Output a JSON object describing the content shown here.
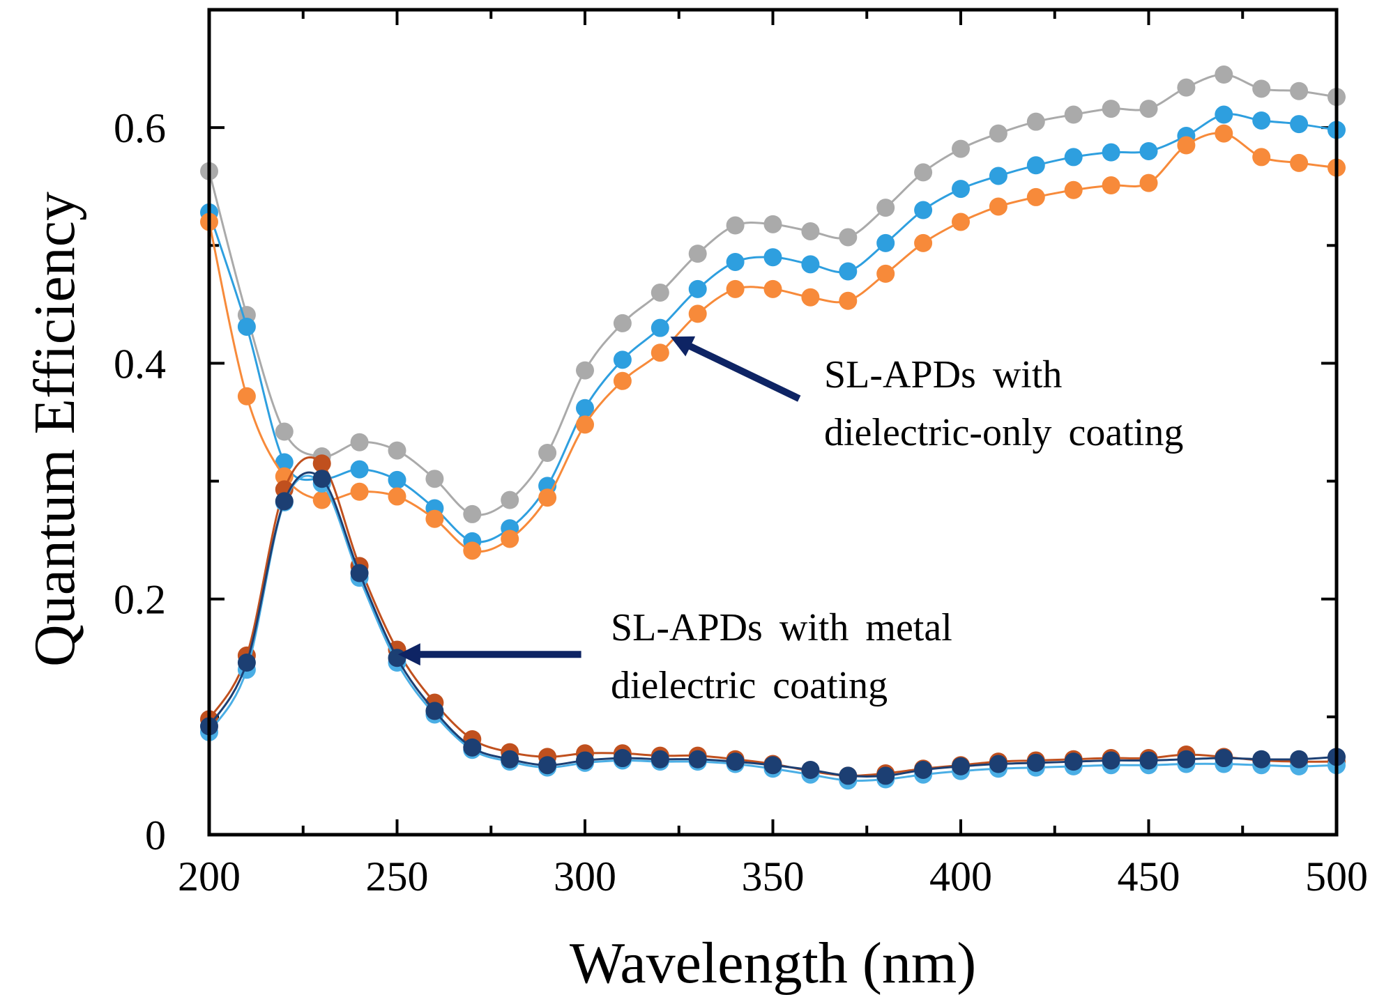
{
  "chart_data": {
    "type": "line",
    "title": "",
    "xlabel": "Wavelength (nm)",
    "ylabel": "Quantum Efficiency",
    "xlim": [
      200,
      500
    ],
    "ylim": [
      0,
      0.7
    ],
    "x_ticks": [
      200,
      250,
      300,
      350,
      400,
      450,
      500
    ],
    "x_tick_labels": [
      "200",
      "250",
      "300",
      "350",
      "400",
      "450",
      "500"
    ],
    "y_ticks": [
      0,
      0.2,
      0.4,
      0.6
    ],
    "y_tick_labels": [
      "0",
      "0.2",
      "0.4",
      "0.6"
    ],
    "y_minor_ticks": [
      0.1,
      0.3,
      0.5
    ],
    "grid": false,
    "x": [
      200,
      210,
      220,
      230,
      240,
      250,
      260,
      270,
      280,
      290,
      300,
      310,
      320,
      330,
      340,
      350,
      360,
      370,
      380,
      390,
      400,
      410,
      420,
      430,
      440,
      450,
      460,
      470,
      480,
      490,
      500
    ],
    "series": [
      {
        "name": "dielectric-only gray",
        "color": "#aaaaaa",
        "group": "dielectric-only",
        "values": [
          0.563,
          0.441,
          0.342,
          0.321,
          0.333,
          0.326,
          0.302,
          0.272,
          0.284,
          0.324,
          0.394,
          0.434,
          0.46,
          0.493,
          0.517,
          0.518,
          0.512,
          0.507,
          0.532,
          0.562,
          0.582,
          0.595,
          0.605,
          0.611,
          0.616,
          0.616,
          0.634,
          0.645,
          0.633,
          0.631,
          0.626
        ]
      },
      {
        "name": "dielectric-only light blue",
        "color": "#2e9fdf",
        "group": "dielectric-only",
        "values": [
          0.528,
          0.431,
          0.316,
          0.302,
          0.31,
          0.301,
          0.277,
          0.249,
          0.26,
          0.296,
          0.362,
          0.403,
          0.43,
          0.463,
          0.486,
          0.49,
          0.484,
          0.478,
          0.502,
          0.53,
          0.548,
          0.559,
          0.568,
          0.575,
          0.579,
          0.58,
          0.593,
          0.611,
          0.606,
          0.603,
          0.598
        ]
      },
      {
        "name": "dielectric-only orange",
        "color": "#f78a3a",
        "group": "dielectric-only",
        "values": [
          0.52,
          0.372,
          0.304,
          0.284,
          0.291,
          0.287,
          0.268,
          0.241,
          0.251,
          0.286,
          0.348,
          0.385,
          0.409,
          0.442,
          0.463,
          0.463,
          0.456,
          0.453,
          0.476,
          0.502,
          0.52,
          0.533,
          0.541,
          0.547,
          0.551,
          0.553,
          0.585,
          0.595,
          0.575,
          0.57,
          0.566
        ]
      },
      {
        "name": "metal-dielectric brown",
        "color": "#c0501e",
        "group": "metal-dielectric",
        "values": [
          0.098,
          0.152,
          0.293,
          0.315,
          0.228,
          0.157,
          0.112,
          0.081,
          0.07,
          0.066,
          0.069,
          0.069,
          0.067,
          0.067,
          0.064,
          0.06,
          0.054,
          0.05,
          0.052,
          0.056,
          0.059,
          0.062,
          0.063,
          0.064,
          0.065,
          0.065,
          0.068,
          0.066,
          0.063,
          0.062,
          0.062
        ]
      },
      {
        "name": "metal-dielectric sky blue",
        "color": "#4aaee5",
        "group": "metal-dielectric",
        "values": [
          0.087,
          0.14,
          0.282,
          0.298,
          0.218,
          0.146,
          0.102,
          0.072,
          0.062,
          0.057,
          0.061,
          0.063,
          0.062,
          0.062,
          0.06,
          0.056,
          0.051,
          0.046,
          0.047,
          0.051,
          0.054,
          0.056,
          0.057,
          0.058,
          0.059,
          0.059,
          0.06,
          0.06,
          0.059,
          0.058,
          0.059
        ]
      },
      {
        "name": "metal-dielectric navy",
        "color": "#1c3f73",
        "group": "metal-dielectric",
        "values": [
          0.092,
          0.146,
          0.283,
          0.302,
          0.222,
          0.15,
          0.105,
          0.074,
          0.064,
          0.059,
          0.063,
          0.065,
          0.064,
          0.064,
          0.062,
          0.059,
          0.055,
          0.05,
          0.05,
          0.055,
          0.058,
          0.06,
          0.061,
          0.062,
          0.063,
          0.063,
          0.064,
          0.065,
          0.064,
          0.064,
          0.066
        ]
      }
    ],
    "annotations": [
      {
        "lines": [
          "SL-APDs with",
          "dielectric-only coating"
        ],
        "arrow_to": [
          327,
          0.416
        ],
        "arrow_from": [
          357,
          0.37
        ]
      },
      {
        "lines": [
          "SL-APDs with metal",
          "dielectric coating"
        ],
        "arrow_to": [
          255,
          0.153
        ],
        "arrow_from": [
          299,
          0.153
        ]
      }
    ],
    "arrow_color": "#0e2464"
  }
}
